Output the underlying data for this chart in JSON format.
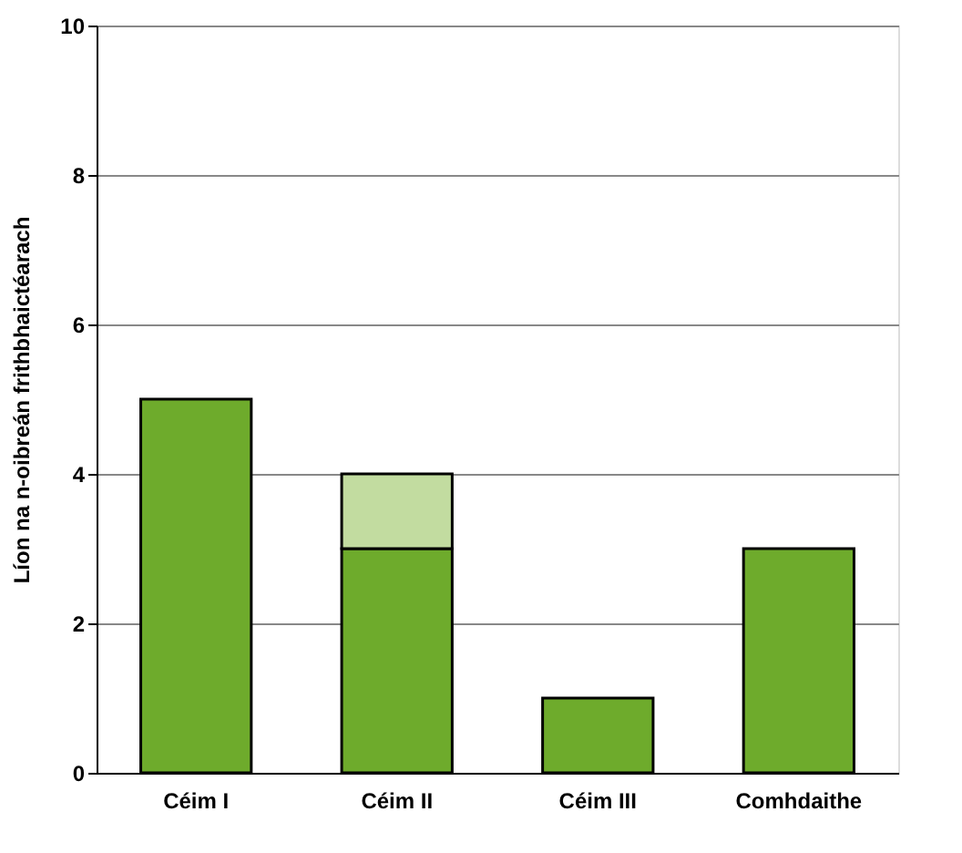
{
  "chart_data": {
    "type": "bar",
    "stacked": true,
    "ylabel": "Líon na n-oibreán frithbhaictéarach",
    "categories": [
      "Céim I",
      "Céim II",
      "Céim III",
      "Comhdaithe"
    ],
    "series": [
      {
        "color": "#6eab2c",
        "values": [
          5,
          3,
          1,
          3
        ]
      },
      {
        "color": "#c2dca0",
        "values": [
          null,
          1,
          null,
          null
        ]
      }
    ],
    "ylim": [
      0,
      10
    ],
    "yticks": [
      0,
      2,
      4,
      6,
      8,
      10
    ],
    "grid": "y",
    "legend": false
  }
}
